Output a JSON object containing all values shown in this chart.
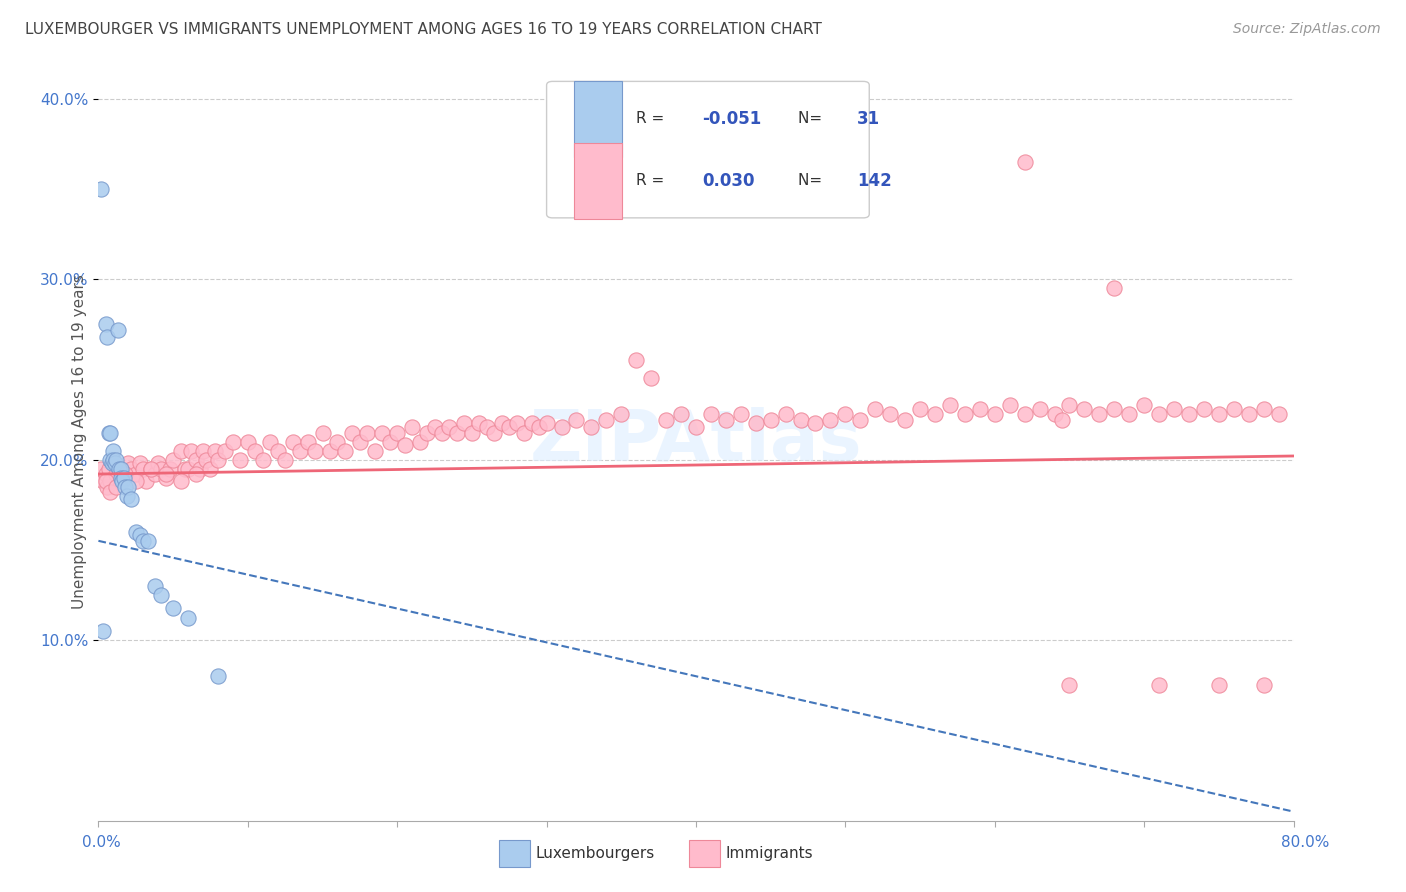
{
  "title": "LUXEMBOURGER VS IMMIGRANTS UNEMPLOYMENT AMONG AGES 16 TO 19 YEARS CORRELATION CHART",
  "source": "Source: ZipAtlas.com",
  "ylabel": "Unemployment Among Ages 16 to 19 years",
  "legend_label1": "Luxembourgers",
  "legend_label2": "Immigrants",
  "R1": "-0.051",
  "N1": "31",
  "R2": "0.030",
  "N2": "142",
  "blue_color": "#aaccee",
  "pink_color": "#ffbbcc",
  "blue_edge_color": "#7799cc",
  "pink_edge_color": "#ee8899",
  "blue_line_color": "#4477bb",
  "pink_line_color": "#ee6677",
  "title_color": "#444444",
  "source_color": "#999999",
  "legend_text_color": "#3355bb",
  "watermark_color": "#ddeeff",
  "axis_color": "#aaaaaa",
  "grid_color": "#cccccc",
  "tick_label_color": "#4477cc",
  "xlim": [
    0.0,
    0.8
  ],
  "ylim": [
    0.0,
    0.42
  ],
  "yticks": [
    0.1,
    0.2,
    0.3,
    0.4
  ],
  "ytick_labels": [
    "10.0%",
    "20.0%",
    "30.0%",
    "40.0%"
  ],
  "blue_x": [
    0.002,
    0.003,
    0.005,
    0.006,
    0.007,
    0.008,
    0.008,
    0.009,
    0.01,
    0.01,
    0.011,
    0.012,
    0.013,
    0.014,
    0.015,
    0.015,
    0.016,
    0.017,
    0.018,
    0.019,
    0.02,
    0.022,
    0.025,
    0.028,
    0.03,
    0.033,
    0.038,
    0.042,
    0.05,
    0.06,
    0.08
  ],
  "blue_y": [
    0.35,
    0.105,
    0.275,
    0.268,
    0.215,
    0.215,
    0.2,
    0.198,
    0.205,
    0.2,
    0.198,
    0.2,
    0.272,
    0.195,
    0.195,
    0.19,
    0.188,
    0.19,
    0.185,
    0.18,
    0.185,
    0.178,
    0.16,
    0.158,
    0.155,
    0.155,
    0.13,
    0.125,
    0.118,
    0.112,
    0.08
  ],
  "blue_line_x": [
    0.0,
    0.8
  ],
  "blue_line_y": [
    0.155,
    0.005
  ],
  "pink_line_x": [
    0.0,
    0.8
  ],
  "pink_line_y": [
    0.192,
    0.202
  ],
  "pink_x": [
    0.002,
    0.003,
    0.005,
    0.006,
    0.007,
    0.008,
    0.01,
    0.012,
    0.014,
    0.015,
    0.018,
    0.02,
    0.022,
    0.025,
    0.028,
    0.03,
    0.032,
    0.035,
    0.038,
    0.04,
    0.042,
    0.045,
    0.048,
    0.05,
    0.055,
    0.058,
    0.06,
    0.062,
    0.065,
    0.068,
    0.07,
    0.072,
    0.075,
    0.078,
    0.08,
    0.085,
    0.09,
    0.095,
    0.1,
    0.105,
    0.11,
    0.115,
    0.12,
    0.125,
    0.13,
    0.135,
    0.14,
    0.145,
    0.15,
    0.155,
    0.16,
    0.165,
    0.17,
    0.175,
    0.18,
    0.185,
    0.19,
    0.195,
    0.2,
    0.205,
    0.21,
    0.215,
    0.22,
    0.225,
    0.23,
    0.235,
    0.24,
    0.245,
    0.25,
    0.255,
    0.26,
    0.265,
    0.27,
    0.275,
    0.28,
    0.285,
    0.29,
    0.295,
    0.3,
    0.31,
    0.32,
    0.33,
    0.34,
    0.35,
    0.36,
    0.37,
    0.38,
    0.39,
    0.4,
    0.41,
    0.42,
    0.43,
    0.44,
    0.45,
    0.46,
    0.47,
    0.48,
    0.49,
    0.5,
    0.51,
    0.52,
    0.53,
    0.54,
    0.55,
    0.56,
    0.57,
    0.58,
    0.59,
    0.6,
    0.61,
    0.62,
    0.63,
    0.64,
    0.645,
    0.65,
    0.66,
    0.67,
    0.68,
    0.69,
    0.7,
    0.71,
    0.72,
    0.73,
    0.74,
    0.75,
    0.76,
    0.77,
    0.78,
    0.79,
    0.62,
    0.68,
    0.75,
    0.78,
    0.65,
    0.71,
    0.005,
    0.008,
    0.012,
    0.018,
    0.025,
    0.035,
    0.045,
    0.055,
    0.065
  ],
  "pink_y": [
    0.195,
    0.188,
    0.192,
    0.185,
    0.195,
    0.188,
    0.198,
    0.192,
    0.195,
    0.188,
    0.192,
    0.198,
    0.195,
    0.192,
    0.198,
    0.195,
    0.188,
    0.195,
    0.192,
    0.198,
    0.195,
    0.19,
    0.195,
    0.2,
    0.205,
    0.195,
    0.195,
    0.205,
    0.2,
    0.195,
    0.205,
    0.2,
    0.195,
    0.205,
    0.2,
    0.205,
    0.21,
    0.2,
    0.21,
    0.205,
    0.2,
    0.21,
    0.205,
    0.2,
    0.21,
    0.205,
    0.21,
    0.205,
    0.215,
    0.205,
    0.21,
    0.205,
    0.215,
    0.21,
    0.215,
    0.205,
    0.215,
    0.21,
    0.215,
    0.208,
    0.218,
    0.21,
    0.215,
    0.218,
    0.215,
    0.218,
    0.215,
    0.22,
    0.215,
    0.22,
    0.218,
    0.215,
    0.22,
    0.218,
    0.22,
    0.215,
    0.22,
    0.218,
    0.22,
    0.218,
    0.222,
    0.218,
    0.222,
    0.225,
    0.255,
    0.245,
    0.222,
    0.225,
    0.218,
    0.225,
    0.222,
    0.225,
    0.22,
    0.222,
    0.225,
    0.222,
    0.22,
    0.222,
    0.225,
    0.222,
    0.228,
    0.225,
    0.222,
    0.228,
    0.225,
    0.23,
    0.225,
    0.228,
    0.225,
    0.23,
    0.225,
    0.228,
    0.225,
    0.222,
    0.23,
    0.228,
    0.225,
    0.228,
    0.225,
    0.23,
    0.225,
    0.228,
    0.225,
    0.228,
    0.225,
    0.228,
    0.225,
    0.228,
    0.225,
    0.365,
    0.295,
    0.075,
    0.075,
    0.075,
    0.075,
    0.188,
    0.182,
    0.185,
    0.192,
    0.188,
    0.195,
    0.192,
    0.188,
    0.192
  ]
}
